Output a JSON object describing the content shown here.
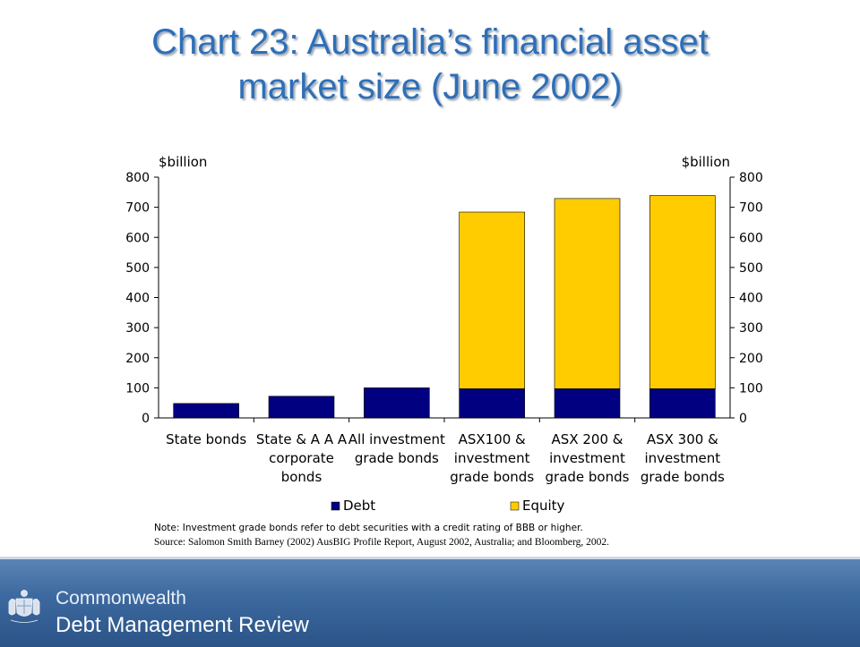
{
  "title": {
    "line1": "Chart 23: Australia’s financial asset",
    "line2": "market size (June 2002)"
  },
  "colors": {
    "title": "#2e6fb8",
    "debt": "#000080",
    "equity": "#ffcc00",
    "footer": "#3d6aa0"
  },
  "chart_data": {
    "type": "bar",
    "stacked": true,
    "categories": [
      [
        "State bonds"
      ],
      [
        "State & A A A",
        "corporate",
        "bonds"
      ],
      [
        "All investment",
        "grade bonds"
      ],
      [
        "ASX100 &",
        "investment",
        "grade bonds"
      ],
      [
        "ASX 200 &",
        "investment",
        "grade bonds"
      ],
      [
        "ASX 300 &",
        "investment",
        "grade bonds"
      ]
    ],
    "series": [
      {
        "name": "Debt",
        "color": "#000080",
        "values": [
          48,
          72,
          100,
          97,
          97,
          97
        ]
      },
      {
        "name": "Equity",
        "color": "#ffcc00",
        "values": [
          0,
          0,
          0,
          587,
          632,
          642
        ]
      }
    ],
    "ylabel_left": "$billion",
    "ylabel_right": "$billion",
    "ylim": [
      0,
      800
    ],
    "yticks": [
      0,
      100,
      200,
      300,
      400,
      500,
      600,
      700,
      800
    ],
    "grid": false,
    "legend_position": "bottom"
  },
  "note": "Note: Investment grade bonds refer to debt securities with a credit rating of BBB or higher.",
  "source": "Source: Salomon Smith Barney (2002) AusBIG Profile Report, August 2002, Australia; and Bloomberg, 2002.",
  "footer": {
    "org": "Commonwealth",
    "review": "Debt Management Review",
    "logo_icon": "coat-of-arms-icon"
  }
}
